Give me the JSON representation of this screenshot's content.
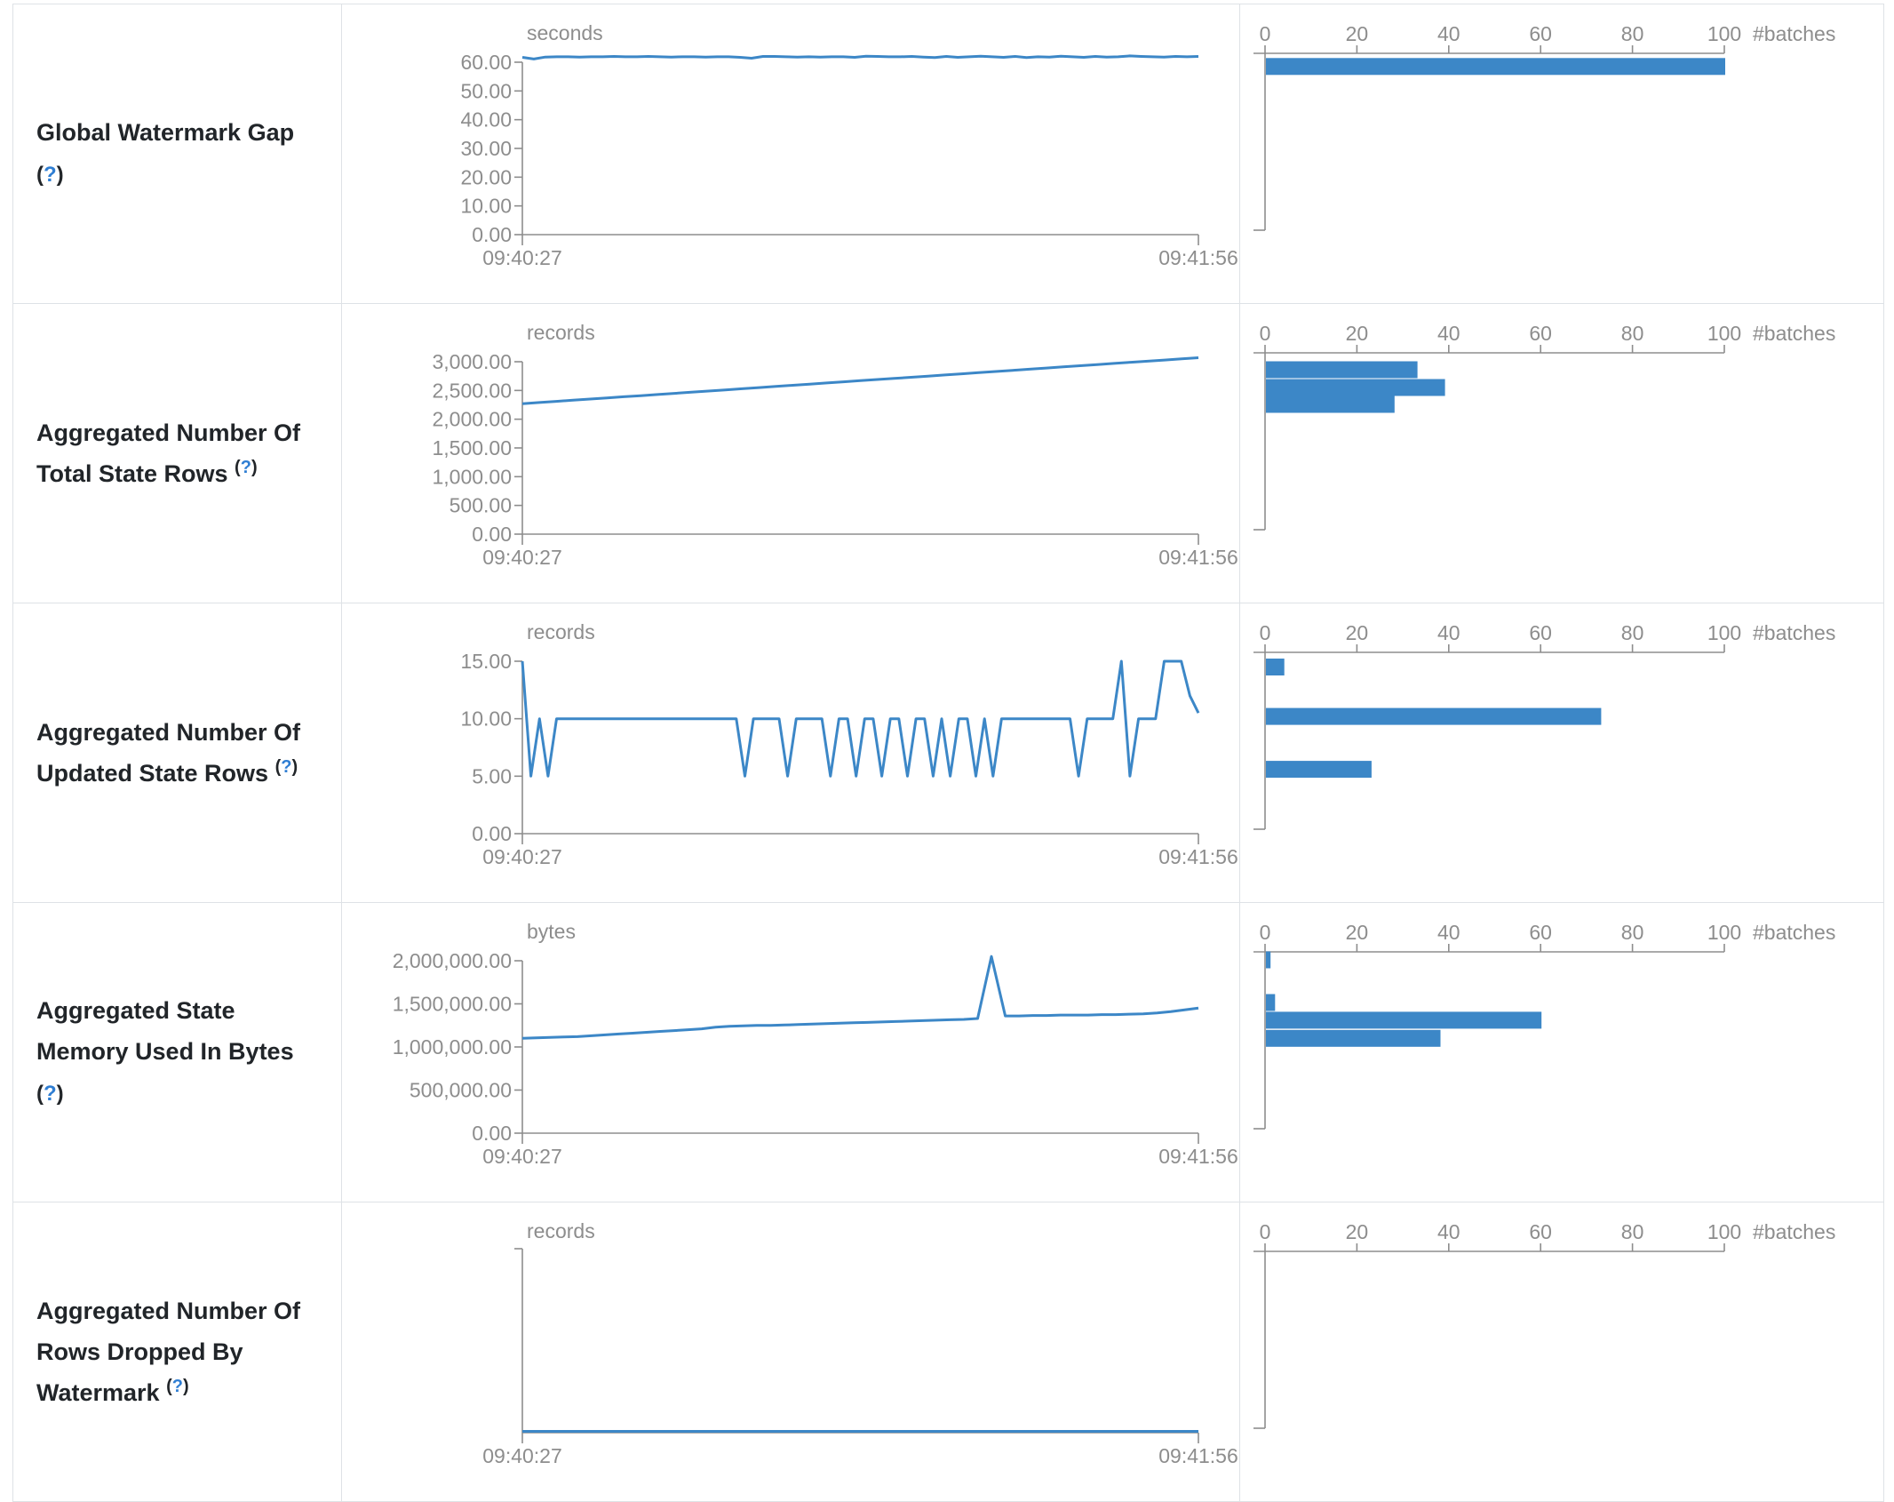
{
  "colors": {
    "series_blue": "#3C87C7",
    "axis_gray": "#8d8d8d",
    "tick_text_gray": "#8d8d8d",
    "label_dark": "#212529",
    "help_blue": "#2f7ed3",
    "table_border": "#dee2e6"
  },
  "histogram_axis": {
    "tick_labels": [
      "0",
      "20",
      "40",
      "60",
      "80",
      "100"
    ],
    "max": 100,
    "unit_label": "#batches"
  },
  "timeline_axis": {
    "x_start_label": "09:40:27",
    "x_end_label": "09:41:56"
  },
  "help_marker": {
    "open": "(",
    "q": "?",
    "close": ")"
  },
  "rows": [
    {
      "label_lines": [
        "Global Watermark Gap"
      ],
      "help_own_line": true,
      "timeline": {
        "unit": "seconds",
        "y_tick_labels": [
          "60.00",
          "50.00",
          "40.00",
          "30.00",
          "20.00",
          "10.00",
          "0.00"
        ],
        "y_max": 60,
        "series": [
          61.7,
          61.1,
          61.8,
          61.9,
          61.9,
          61.8,
          61.9,
          61.9,
          62,
          61.9,
          61.9,
          62,
          61.9,
          61.8,
          61.9,
          61.9,
          61.8,
          61.9,
          61.9,
          61.7,
          61.4,
          62,
          62,
          61.9,
          61.8,
          61.9,
          61.8,
          61.9,
          61.9,
          61.7,
          62.1,
          62,
          61.9,
          61.9,
          62,
          61.8,
          61.6,
          62,
          61.7,
          61.9,
          62.1,
          61.9,
          61.7,
          62,
          61.6,
          61.9,
          61.8,
          62.1,
          61.9,
          61.7,
          62,
          61.8,
          61.9,
          62.2,
          62,
          61.9,
          61.8,
          62,
          61.9,
          62
        ]
      },
      "histogram": {
        "bars": [
          {
            "bin_value": 58.5,
            "count": 100
          }
        ]
      }
    },
    {
      "label_lines": [
        "Aggregated Number Of",
        "Total State Rows"
      ],
      "help_own_line": false,
      "timeline": {
        "unit": "records",
        "y_tick_labels": [
          "3,000.00",
          "2,500.00",
          "2,000.00",
          "1,500.00",
          "1,000.00",
          "500.00",
          "0.00"
        ],
        "y_max": 3000,
        "series": [
          2270,
          2290,
          2310,
          2330,
          2350,
          2370,
          2390,
          2410,
          2430,
          2450,
          2470,
          2490,
          2510,
          2530,
          2550,
          2570,
          2590,
          2610,
          2630,
          2650,
          2670,
          2690,
          2710,
          2730,
          2750,
          2770,
          2790,
          2810,
          2830,
          2850,
          2870,
          2890,
          2910,
          2930,
          2950,
          2970,
          2990,
          3010,
          3030,
          3050,
          3070
        ]
      },
      "histogram": {
        "bars": [
          {
            "bin_value": 2861,
            "count": 33
          },
          {
            "bin_value": 2552,
            "count": 39
          },
          {
            "bin_value": 2258,
            "count": 28
          }
        ]
      }
    },
    {
      "label_lines": [
        "Aggregated Number Of",
        "Updated State Rows"
      ],
      "help_own_line": false,
      "timeline": {
        "unit": "records",
        "y_tick_labels": [
          "15.00",
          "10.00",
          "5.00",
          "0.00"
        ],
        "y_max": 15,
        "series": [
          15,
          5,
          10,
          5,
          10,
          10,
          10,
          10,
          10,
          10,
          10,
          10,
          10,
          10,
          10,
          10,
          10,
          10,
          10,
          10,
          10,
          10,
          10,
          10,
          10,
          10,
          5,
          10,
          10,
          10,
          10,
          5,
          10,
          10,
          10,
          10,
          5,
          10,
          10,
          5,
          10,
          10,
          5,
          10,
          10,
          5,
          10,
          10,
          5,
          10,
          5,
          10,
          10,
          5,
          10,
          5,
          10,
          10,
          10,
          10,
          10,
          10,
          10,
          10,
          10,
          5,
          10,
          10,
          10,
          10,
          15,
          5,
          10,
          10,
          10,
          15,
          15,
          15,
          12,
          10.5
        ]
      },
      "histogram": {
        "bars": [
          {
            "bin_value": 14.5,
            "count": 4
          },
          {
            "bin_value": 10.2,
            "count": 73
          },
          {
            "bin_value": 5.6,
            "count": 23
          }
        ]
      }
    },
    {
      "label_lines": [
        "Aggregated State",
        "Memory Used In Bytes"
      ],
      "help_own_line": true,
      "timeline": {
        "unit": "bytes",
        "y_tick_labels": [
          "2,000,000.00",
          "1,500,000.00",
          "1,000,000.00",
          "500,000.00",
          "0.00"
        ],
        "y_max": 2000000,
        "series": [
          1100000,
          1105000,
          1110000,
          1115000,
          1120000,
          1130000,
          1140000,
          1150000,
          1160000,
          1170000,
          1180000,
          1190000,
          1200000,
          1210000,
          1230000,
          1240000,
          1245000,
          1250000,
          1250000,
          1255000,
          1260000,
          1265000,
          1270000,
          1275000,
          1280000,
          1285000,
          1290000,
          1295000,
          1300000,
          1305000,
          1310000,
          1315000,
          1320000,
          1330000,
          2050000,
          1360000,
          1360000,
          1365000,
          1365000,
          1370000,
          1370000,
          1370000,
          1375000,
          1375000,
          1380000,
          1385000,
          1395000,
          1410000,
          1430000,
          1450000
        ]
      },
      "histogram": {
        "bars": [
          {
            "bin_value": 2010000,
            "count": 1
          },
          {
            "bin_value": 1515000,
            "count": 2
          },
          {
            "bin_value": 1310000,
            "count": 60
          },
          {
            "bin_value": 1100000,
            "count": 38
          }
        ]
      }
    },
    {
      "label_lines": [
        "Aggregated Number Of",
        "Rows Dropped By",
        "Watermark"
      ],
      "help_own_line": false,
      "timeline": {
        "unit": "records",
        "y_tick_labels": [],
        "y_max": 1,
        "series": [
          0,
          0
        ]
      },
      "histogram": {
        "bars": []
      }
    }
  ],
  "chart_data": [
    {
      "type": "line",
      "title": "Global Watermark Gap",
      "ylabel": "seconds",
      "x_range": [
        "09:40:27",
        "09:41:56"
      ],
      "ylim": [
        0,
        60
      ],
      "summary": "flat line at ~61.8 seconds across ~100 batches",
      "histogram_batches": {
        "~60s": 100
      }
    },
    {
      "type": "line",
      "title": "Aggregated Number Of Total State Rows",
      "ylabel": "records",
      "x_range": [
        "09:40:27",
        "09:41:56"
      ],
      "ylim": [
        0,
        3000
      ],
      "summary": "monotonic rise from ~2,270 to ~3,070 records",
      "histogram_batches": {
        "~2860": 33,
        "~2550": 39,
        "~2260": 28
      }
    },
    {
      "type": "line",
      "title": "Aggregated Number Of Updated State Rows",
      "ylabel": "records",
      "x_range": [
        "09:40:27",
        "09:41:56"
      ],
      "ylim": [
        0,
        15
      ],
      "summary": "mostly 10 records with frequent dips to 5 and occasional spikes to 15",
      "histogram_batches": {
        "15": 4,
        "10": 73,
        "5": 23
      }
    },
    {
      "type": "line",
      "title": "Aggregated State Memory Used In Bytes",
      "ylabel": "bytes",
      "x_range": [
        "09:40:27",
        "09:41:56"
      ],
      "ylim": [
        0,
        2000000
      ],
      "summary": "gradual rise 1.10M to 1.45M bytes with one spike to ~2.05M",
      "histogram_batches": {
        "~2.0M": 1,
        "~1.5M": 2,
        "~1.3M": 60,
        "~1.1M": 38
      }
    },
    {
      "type": "line",
      "title": "Aggregated Number Of Rows Dropped By Watermark",
      "ylabel": "records",
      "x_range": [
        "09:40:27",
        "09:41:56"
      ],
      "ylim": [
        0,
        1
      ],
      "summary": "flat at 0 records; histogram empty",
      "histogram_batches": {}
    }
  ]
}
